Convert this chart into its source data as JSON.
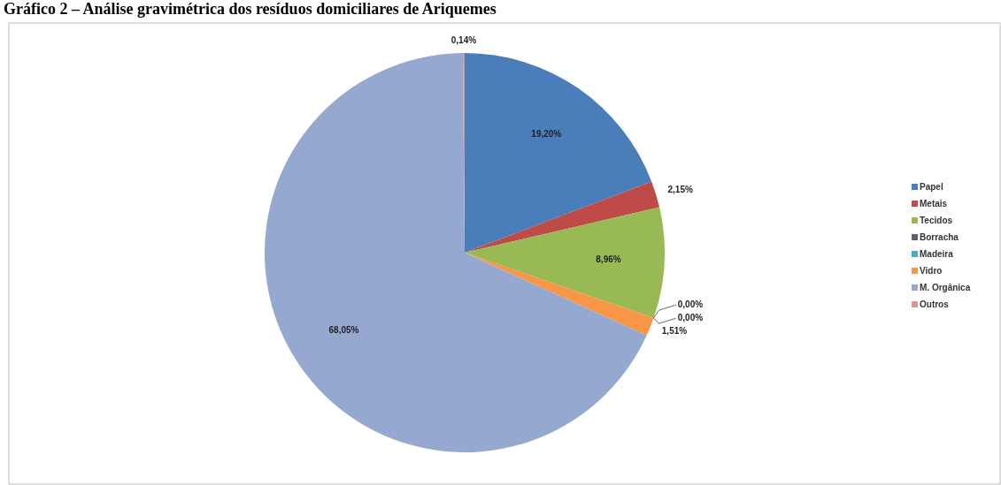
{
  "chart_data": {
    "type": "pie",
    "title": "Gráfico 2 – Análise gravimétrica dos resíduos domiciliares de Ariquemes",
    "categories": [
      "Papel",
      "Metais",
      "Tecidos",
      "Borracha",
      "Madeira",
      "Vidro",
      "M. Orgânica",
      "Outros"
    ],
    "values": [
      19.2,
      2.15,
      8.96,
      0.0,
      0.0,
      1.51,
      68.05,
      0.14
    ],
    "value_labels": [
      "19,20%",
      "2,15%",
      "8,96%",
      "0,00%",
      "0,00%",
      "1,51%",
      "68,05%",
      "0,14%"
    ],
    "colors": [
      "#4a7ebb",
      "#be4b48",
      "#98b954",
      "#5f5f6f",
      "#4bacc6",
      "#f79646",
      "#94a8d0",
      "#d99694"
    ],
    "legend": "right"
  }
}
